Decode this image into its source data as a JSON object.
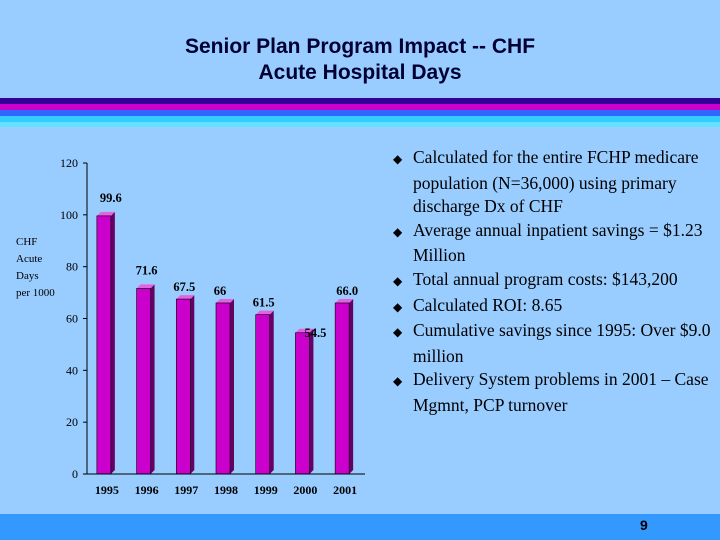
{
  "slide": {
    "title_line1": "Senior Plan Program Impact -- CHF",
    "title_line2": "Acute Hospital Days",
    "page_number": "9",
    "colors": {
      "background": "#99ccff",
      "stripe_dark": "#330099",
      "stripe_magenta": "#cc00cc",
      "stripe_blue": "#3366ff",
      "bar": "#cc00cc",
      "footer": "#3399ff"
    }
  },
  "bullets": [
    "Calculated for the entire FCHP medicare population (N=36,000) using primary discharge Dx of CHF",
    "Average annual inpatient savings = $1.23 Million",
    "Total annual program costs: $143,200",
    "Calculated ROI: 8.65",
    "Cumulative savings since 1995: Over $9.0 million",
    "Delivery System problems in 2001 – Case Mgmnt, PCP turnover"
  ],
  "bullet_glyph": "u",
  "chart_data": {
    "type": "bar",
    "title": "",
    "ylabel_lines": [
      "CHF",
      "Acute",
      "Days",
      "per 1000"
    ],
    "xlabel": "",
    "categories": [
      "1995",
      "1996",
      "1997",
      "1998",
      "1999",
      "2000",
      "2001"
    ],
    "values": [
      99.6,
      71.6,
      67.5,
      66,
      61.5,
      54.5,
      66.0
    ],
    "value_labels": [
      "99.6",
      "71.6",
      "67.5",
      "66",
      "61.5",
      "54.5",
      "66.0"
    ],
    "yticks": [
      "0",
      "20",
      "40",
      "60",
      "80",
      "100",
      "120"
    ],
    "ylim": [
      0,
      120
    ],
    "grid": false
  }
}
